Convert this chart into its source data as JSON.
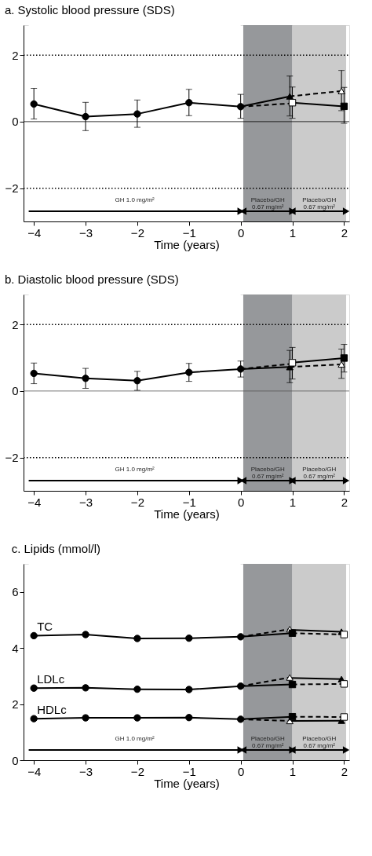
{
  "chart_data": [
    {
      "type": "line",
      "title": "a. Systolic blood pressure (SDS)",
      "xlabel": "Time (years)",
      "xlim": [
        -4.2,
        2.1
      ],
      "xticks": [
        -4,
        -3,
        -2,
        -1,
        0,
        1,
        2
      ],
      "ylim": [
        -3,
        2.9
      ],
      "yticks": [
        -2,
        0,
        2
      ],
      "ref_lines": [
        {
          "axis": "y",
          "value": 2,
          "line_style": "dotted",
          "color": "#000000"
        },
        {
          "axis": "y",
          "value": -2,
          "line_style": "dotted",
          "color": "#000000"
        },
        {
          "axis": "y",
          "value": 0,
          "line_style": "solid",
          "color": "#000000"
        }
      ],
      "bands": [
        {
          "axis": "x",
          "from": -4.1,
          "to": 0,
          "label": "GH 1.0 mg/m²",
          "color": "#ffffff"
        },
        {
          "axis": "x",
          "from": 0.05,
          "to": 1,
          "label": "Placebo/GH 0.67 mg/m²",
          "color": "#96989b"
        },
        {
          "axis": "x",
          "from": 1,
          "to": 2.04,
          "label": "Placebo/GH 0.67 mg/m²",
          "color": "#cbcbcb"
        }
      ],
      "series": [
        {
          "marker": "circle",
          "line_style": "solid",
          "color": "#000000",
          "x": [
            -4,
            -3,
            -2,
            -1,
            0
          ],
          "values": [
            0.53,
            0.15,
            0.23,
            0.57,
            0.45
          ],
          "errors": [
            [
              0.08,
              1.0
            ],
            [
              -0.27,
              0.58
            ],
            [
              -0.17,
              0.65
            ],
            [
              0.18,
              0.97
            ],
            [
              0.1,
              0.82
            ]
          ]
        },
        {
          "marker": "none",
          "line_style": "solid",
          "color": "#000000",
          "x": [
            0,
            0.95
          ],
          "values": [
            0.45,
            0.76
          ]
        },
        {
          "marker": "none",
          "line_style": "dashed",
          "color": "#000000",
          "x": [
            0,
            1
          ],
          "values": [
            0.45,
            0.55
          ]
        },
        {
          "marker": "none",
          "line_style": "solid",
          "color": "#000000",
          "x": [
            1,
            2
          ],
          "values": [
            0.57,
            0.46
          ]
        },
        {
          "marker": "none",
          "line_style": "dashed",
          "color": "#000000",
          "x": [
            0.95,
            1.95
          ],
          "values": [
            0.76,
            0.92
          ]
        },
        {
          "type": "scatter",
          "marker": "triangle",
          "color": "#000000",
          "x": [
            0.95
          ],
          "values": [
            0.76
          ],
          "errors": [
            [
              0.17,
              1.37
            ]
          ]
        },
        {
          "type": "scatter",
          "marker": "square",
          "color": "#ffffff",
          "x": [
            1
          ],
          "values": [
            0.57
          ],
          "errors": [
            [
              0.1,
              1.04
            ]
          ]
        },
        {
          "type": "scatter",
          "marker": "triangle",
          "color": "#ffffff",
          "x": [
            1.95
          ],
          "values": [
            0.92
          ],
          "errors": [
            [
              0.33,
              1.54
            ]
          ]
        },
        {
          "type": "scatter",
          "marker": "square",
          "color": "#000000",
          "x": [
            2
          ],
          "values": [
            0.46
          ],
          "errors": [
            [
              -0.05,
              1.03
            ]
          ]
        }
      ]
    },
    {
      "type": "line",
      "title": "b. Diastolic blood pressure (SDS)",
      "xlabel": "Time (years)",
      "xlim": [
        -4.2,
        2.1
      ],
      "xticks": [
        -4,
        -3,
        -2,
        -1,
        0,
        1,
        2
      ],
      "ylim": [
        -3,
        2.9
      ],
      "yticks": [
        -2,
        0,
        2
      ],
      "ref_lines": [
        {
          "axis": "y",
          "value": 2,
          "line_style": "dotted",
          "color": "#000000"
        },
        {
          "axis": "y",
          "value": -2,
          "line_style": "dotted",
          "color": "#000000"
        },
        {
          "axis": "y",
          "value": 0,
          "line_style": "solid",
          "color": "#555555"
        }
      ],
      "bands": [
        {
          "axis": "x",
          "from": -4.1,
          "to": 0,
          "label": "GH 1.0 mg/m²",
          "color": "#ffffff"
        },
        {
          "axis": "x",
          "from": 0.05,
          "to": 1,
          "label": "Placebo/GH 0.67 mg/m²",
          "color": "#96989b"
        },
        {
          "axis": "x",
          "from": 1,
          "to": 2.04,
          "label": "Placebo/GH 0.67 mg/m²",
          "color": "#cbcbcb"
        }
      ],
      "series": [
        {
          "marker": "circle",
          "line_style": "solid",
          "color": "#000000",
          "x": [
            -4,
            -3,
            -2,
            -1,
            0
          ],
          "values": [
            0.53,
            0.38,
            0.31,
            0.56,
            0.66
          ],
          "errors": [
            [
              0.22,
              0.84
            ],
            [
              0.08,
              0.68
            ],
            [
              0.02,
              0.59
            ],
            [
              0.29,
              0.83
            ],
            [
              0.42,
              0.9
            ]
          ]
        },
        {
          "marker": "none",
          "line_style": "solid",
          "color": "#000000",
          "x": [
            0,
            0.95
          ],
          "values": [
            0.66,
            0.72
          ]
        },
        {
          "marker": "none",
          "line_style": "dashed",
          "color": "#000000",
          "x": [
            0,
            1
          ],
          "values": [
            0.66,
            0.82
          ]
        },
        {
          "marker": "none",
          "line_style": "solid",
          "color": "#000000",
          "x": [
            1,
            2
          ],
          "values": [
            0.85,
            0.99
          ]
        },
        {
          "marker": "none",
          "line_style": "dashed",
          "color": "#000000",
          "x": [
            0.95,
            1.95
          ],
          "values": [
            0.72,
            0.8
          ]
        },
        {
          "type": "scatter",
          "marker": "triangle",
          "color": "#000000",
          "x": [
            0.95
          ],
          "values": [
            0.72
          ],
          "errors": [
            [
              0.25,
              1.22
            ]
          ]
        },
        {
          "type": "scatter",
          "marker": "square",
          "color": "#ffffff",
          "x": [
            1
          ],
          "values": [
            0.85
          ],
          "errors": [
            [
              0.36,
              1.31
            ]
          ]
        },
        {
          "type": "scatter",
          "marker": "triangle",
          "color": "#ffffff",
          "x": [
            1.95
          ],
          "values": [
            0.8
          ],
          "errors": [
            [
              0.38,
              1.26
            ]
          ]
        },
        {
          "type": "scatter",
          "marker": "square",
          "color": "#000000",
          "x": [
            2
          ],
          "values": [
            0.99
          ],
          "errors": [
            [
              0.57,
              1.4
            ]
          ]
        }
      ]
    },
    {
      "type": "line",
      "title": "c. Lipids (mmol/l)",
      "xlabel": "Time (years)",
      "xlim": [
        -4.2,
        2.1
      ],
      "xticks": [
        -4,
        -3,
        -2,
        -1,
        0,
        1,
        2
      ],
      "ylim": [
        0,
        7
      ],
      "yticks": [
        0,
        2,
        4,
        6
      ],
      "bands": [
        {
          "axis": "x",
          "from": -4.1,
          "to": 0,
          "label": "GH 1.0 mg/m²",
          "color": "#ffffff"
        },
        {
          "axis": "x",
          "from": 0.05,
          "to": 1,
          "label": "Placebo/GH 0.67 mg/m²",
          "color": "#96989b"
        },
        {
          "axis": "x",
          "from": 1,
          "to": 2.04,
          "label": "Placebo/GH 0.67 mg/m²",
          "color": "#cbcbcb"
        }
      ],
      "series": [
        {
          "name": "TC",
          "marker": "circle",
          "line_style": "solid",
          "color": "#000000",
          "x": [
            -4,
            -3,
            -2,
            -1,
            0
          ],
          "values": [
            4.44,
            4.48,
            4.34,
            4.35,
            4.4
          ]
        },
        {
          "marker": "none",
          "line_style": "dashed",
          "color": "#000000",
          "x": [
            0,
            0.95
          ],
          "values": [
            4.4,
            4.67
          ]
        },
        {
          "marker": "none",
          "line_style": "solid",
          "color": "#000000",
          "x": [
            0,
            1
          ],
          "values": [
            4.4,
            4.53
          ]
        },
        {
          "marker": "none",
          "line_style": "solid",
          "color": "#000000",
          "x": [
            0.95,
            1.95
          ],
          "values": [
            4.65,
            4.58
          ]
        },
        {
          "marker": "none",
          "line_style": "dashed",
          "color": "#000000",
          "x": [
            1,
            2
          ],
          "values": [
            4.53,
            4.48
          ]
        },
        {
          "name": "LDLc",
          "marker": "circle",
          "line_style": "solid",
          "color": "#000000",
          "x": [
            -4,
            -3,
            -2,
            -1,
            0
          ],
          "values": [
            2.57,
            2.58,
            2.53,
            2.52,
            2.64
          ]
        },
        {
          "marker": "none",
          "line_style": "dashed",
          "color": "#000000",
          "x": [
            0,
            0.95
          ],
          "values": [
            2.64,
            2.95
          ]
        },
        {
          "marker": "none",
          "line_style": "solid",
          "color": "#000000",
          "x": [
            0,
            1
          ],
          "values": [
            2.64,
            2.7
          ]
        },
        {
          "marker": "none",
          "line_style": "solid",
          "color": "#000000",
          "x": [
            0.95,
            1.95
          ],
          "values": [
            2.93,
            2.89
          ]
        },
        {
          "marker": "none",
          "line_style": "dashed",
          "color": "#000000",
          "x": [
            1,
            2
          ],
          "values": [
            2.7,
            2.72
          ]
        },
        {
          "name": "HDLc",
          "marker": "circle",
          "line_style": "solid",
          "color": "#000000",
          "x": [
            -4,
            -3,
            -2,
            -1,
            0
          ],
          "values": [
            1.48,
            1.51,
            1.51,
            1.52,
            1.46
          ]
        },
        {
          "marker": "none",
          "line_style": "solid",
          "color": "#000000",
          "x": [
            0,
            1
          ],
          "values": [
            1.46,
            1.55
          ]
        },
        {
          "marker": "none",
          "line_style": "dashed",
          "color": "#000000",
          "x": [
            0,
            0.95
          ],
          "values": [
            1.46,
            1.4
          ]
        },
        {
          "marker": "none",
          "line_style": "dashed",
          "color": "#000000",
          "x": [
            1,
            2
          ],
          "values": [
            1.55,
            1.54
          ]
        },
        {
          "marker": "none",
          "line_style": "solid",
          "color": "#000000",
          "x": [
            0.95,
            1.95
          ],
          "values": [
            1.4,
            1.41
          ]
        },
        {
          "type": "scatter",
          "marker": "triangle",
          "color": "#ffffff",
          "x": [
            0.95,
            0.95,
            0.95
          ],
          "values": [
            4.67,
            2.95,
            1.4
          ]
        },
        {
          "type": "scatter",
          "marker": "square",
          "color": "#000000",
          "x": [
            1,
            1,
            1
          ],
          "values": [
            4.53,
            2.7,
            1.55
          ]
        },
        {
          "type": "scatter",
          "marker": "triangle",
          "color": "#000000",
          "x": [
            1.95,
            1.95,
            1.95
          ],
          "values": [
            4.58,
            2.89,
            1.41
          ]
        },
        {
          "type": "scatter",
          "marker": "square",
          "color": "#ffffff",
          "x": [
            2,
            2,
            2
          ],
          "values": [
            4.48,
            2.72,
            1.54
          ]
        }
      ]
    }
  ]
}
